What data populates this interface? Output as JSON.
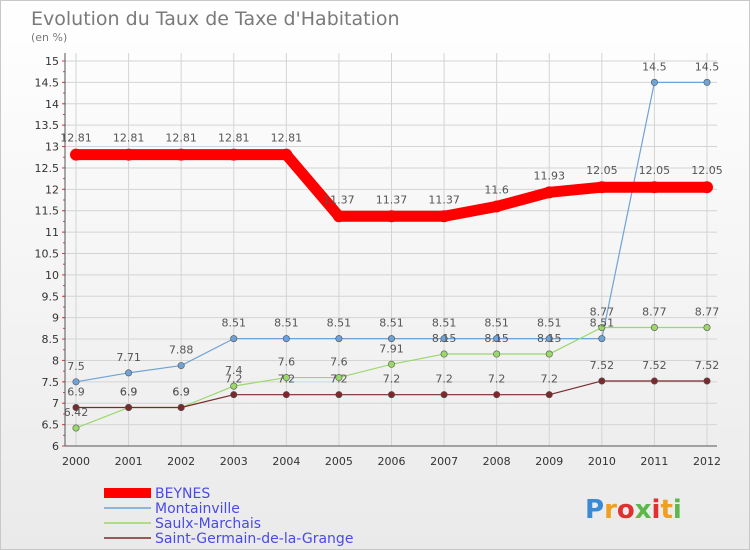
{
  "chart_data": {
    "type": "line",
    "title": "Evolution du Taux de Taxe d'Habitation",
    "subtitle": "(en %)",
    "x": [
      "2000",
      "2001",
      "2002",
      "2003",
      "2004",
      "2005",
      "2006",
      "2007",
      "2008",
      "2009",
      "2010",
      "2011",
      "2012"
    ],
    "ylim": [
      6,
      15
    ],
    "yticks": [
      "6",
      "6.5",
      "7",
      "7.5",
      "8",
      "8.5",
      "9",
      "9.5",
      "10",
      "10.5",
      "11",
      "11.5",
      "12",
      "12.5",
      "13",
      "13.5",
      "14",
      "14.5",
      "15"
    ],
    "grid": true,
    "legend_position": "bottom-left",
    "series": [
      {
        "name": "BEYNES",
        "color": "#ff0000",
        "values": [
          12.81,
          12.81,
          12.81,
          12.81,
          12.81,
          11.37,
          11.37,
          11.37,
          11.6,
          11.93,
          12.05,
          12.05,
          12.05
        ],
        "labels": [
          "12.81",
          "12.81",
          "12.81",
          "12.81",
          "12.81",
          "11.37",
          "11.37",
          "11.37",
          "11.6",
          "11.93",
          "12.05",
          "12.05",
          "12.05"
        ]
      },
      {
        "name": "Montainville",
        "color": "#6fa3d6",
        "values": [
          7.5,
          7.71,
          7.88,
          8.51,
          8.51,
          8.51,
          8.51,
          8.51,
          8.51,
          8.51,
          8.51,
          14.5,
          14.5
        ],
        "labels": [
          "7.5",
          "7.71",
          "7.88",
          "8.51",
          "8.51",
          "8.51",
          "8.51",
          "8.51",
          "8.51",
          "8.51",
          "8.51",
          "14.5",
          "14.5"
        ]
      },
      {
        "name": "Saulx-Marchais",
        "color": "#9ad86a",
        "values": [
          6.42,
          6.9,
          6.9,
          7.4,
          7.6,
          7.6,
          7.91,
          8.15,
          8.15,
          8.15,
          8.77,
          8.77,
          8.77
        ],
        "labels": [
          "6.42",
          "6.9",
          "6.9",
          "7.4",
          "7.6",
          "7.6",
          "7.91",
          "8.15",
          "8.15",
          "8.15",
          "8.77",
          "8.77",
          "8.77"
        ]
      },
      {
        "name": "Saint-Germain-de-la-Grange",
        "color": "#7a2a2a",
        "values": [
          6.9,
          6.9,
          6.9,
          7.2,
          7.2,
          7.2,
          7.2,
          7.2,
          7.2,
          7.2,
          7.52,
          7.52,
          7.52
        ],
        "labels": [
          "6.9",
          "6.9",
          "6.9",
          "7.2",
          "7.2",
          "7.2",
          "7.2",
          "7.2",
          "7.2",
          "7.2",
          "7.52",
          "7.52",
          "7.52"
        ]
      }
    ]
  },
  "logo": {
    "text": "Proxiti",
    "colors": [
      "#f0a020",
      "#e03030",
      "#3a8ad6",
      "#5cb84a"
    ]
  }
}
